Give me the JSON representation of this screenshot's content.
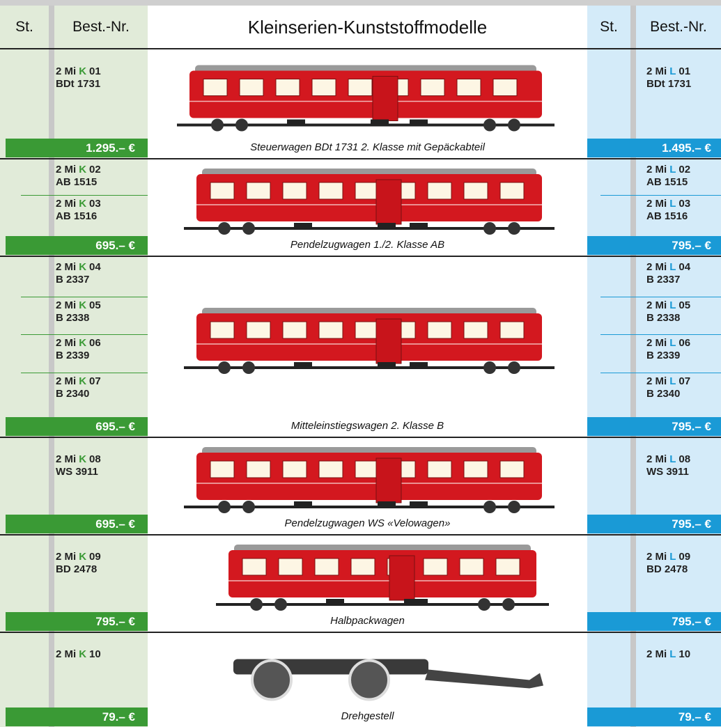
{
  "header": {
    "left_st": "St.",
    "left_best": "Best.-Nr.",
    "title": "Kleinserien-Kunststoffmodelle",
    "right_st": "St.",
    "right_best": "Best.-Nr."
  },
  "rows": [
    {
      "caption": "Steuerwagen BDt 1731 2. Klasse mit Gepäckabteil",
      "left": [
        {
          "prefix": "2 Mi",
          "letter": "K",
          "num": "01",
          "model": "BDt 1731"
        }
      ],
      "left_price": "1.295.– €",
      "right": [
        {
          "prefix": "2 Mi",
          "letter": "L",
          "num": "01",
          "model": "BDt 1731"
        }
      ],
      "right_price": "1.495.– €"
    },
    {
      "caption": "Pendelzugwagen 1./2. Klasse AB",
      "left": [
        {
          "prefix": "2 Mi",
          "letter": "K",
          "num": "02",
          "model": "AB 1515"
        },
        {
          "prefix": "2 Mi",
          "letter": "K",
          "num": "03",
          "model": "AB 1516"
        }
      ],
      "left_price": "695.– €",
      "right": [
        {
          "prefix": "2 Mi",
          "letter": "L",
          "num": "02",
          "model": "AB 1515"
        },
        {
          "prefix": "2 Mi",
          "letter": "L",
          "num": "03",
          "model": "AB 1516"
        }
      ],
      "right_price": "795.– €"
    },
    {
      "caption": "Mitteleinstiegswagen 2. Klasse B",
      "left": [
        {
          "prefix": "2 Mi",
          "letter": "K",
          "num": "04",
          "model": "B 2337"
        },
        {
          "prefix": "2 Mi",
          "letter": "K",
          "num": "05",
          "model": "B 2338"
        },
        {
          "prefix": "2 Mi",
          "letter": "K",
          "num": "06",
          "model": "B 2339"
        },
        {
          "prefix": "2 Mi",
          "letter": "K",
          "num": "07",
          "model": "B 2340"
        }
      ],
      "left_price": "695.– €",
      "right": [
        {
          "prefix": "2 Mi",
          "letter": "L",
          "num": "04",
          "model": "B 2337"
        },
        {
          "prefix": "2 Mi",
          "letter": "L",
          "num": "05",
          "model": "B 2338"
        },
        {
          "prefix": "2 Mi",
          "letter": "L",
          "num": "06",
          "model": "B 2339"
        },
        {
          "prefix": "2 Mi",
          "letter": "L",
          "num": "07",
          "model": "B 2340"
        }
      ],
      "right_price": "795.– €"
    },
    {
      "caption": "Pendelzugwagen WS «Velowagen»",
      "left": [
        {
          "prefix": "2 Mi",
          "letter": "K",
          "num": "08",
          "model": "WS 3911"
        }
      ],
      "left_price": "695.– €",
      "right": [
        {
          "prefix": "2 Mi",
          "letter": "L",
          "num": "08",
          "model": "WS 3911"
        }
      ],
      "right_price": "795.– €"
    },
    {
      "caption": "Halbpackwagen",
      "left": [
        {
          "prefix": "2 Mi",
          "letter": "K",
          "num": "09",
          "model": "BD 2478"
        }
      ],
      "left_price": "795.– €",
      "right": [
        {
          "prefix": "2 Mi",
          "letter": "L",
          "num": "09",
          "model": "BD 2478"
        }
      ],
      "right_price": "795.– €"
    },
    {
      "caption": "Drehgestell",
      "left": [
        {
          "prefix": "2 Mi",
          "letter": "K",
          "num": "10"
        }
      ],
      "left_price": "79.– €",
      "right": [
        {
          "prefix": "2 Mi",
          "letter": "L",
          "num": "10"
        }
      ],
      "right_price": "79.– €"
    }
  ]
}
